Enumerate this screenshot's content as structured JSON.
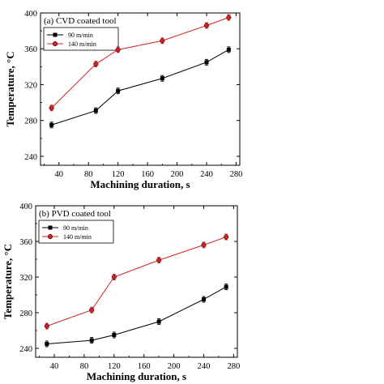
{
  "chart_data": [
    {
      "type": "line",
      "title": "(a)  CVD coated tool",
      "xlabel": "Machining duration, s",
      "ylabel": "Temperature, °C",
      "xlim": [
        15,
        285
      ],
      "ylim": [
        230,
        400
      ],
      "xticks": [
        "40",
        "80",
        "120",
        "160",
        "200",
        "240",
        "280"
      ],
      "yticks": [
        "240",
        "280",
        "320",
        "360",
        "400"
      ],
      "grid": false,
      "legend_position": "top-left",
      "x": [
        30,
        90,
        120,
        180,
        240,
        270
      ],
      "series": [
        {
          "name": "90 m/min",
          "color": "#000000",
          "marker": "square",
          "values": [
            275,
            291,
            313,
            327,
            345,
            359
          ]
        },
        {
          "name": "140 m/min",
          "color": "#d62020",
          "marker": "circle",
          "values": [
            294,
            343,
            359,
            369,
            386,
            395
          ]
        }
      ]
    },
    {
      "type": "line",
      "title": "(b) PVD coated  tool",
      "xlabel": "Machining duration, s",
      "ylabel": "Temperature, °C",
      "xlim": [
        15,
        285
      ],
      "ylim": [
        230,
        400
      ],
      "xticks": [
        "40",
        "80",
        "120",
        "160",
        "200",
        "240",
        "280"
      ],
      "yticks": [
        "240",
        "280",
        "320",
        "360",
        "400"
      ],
      "grid": false,
      "legend_position": "top-left",
      "x": [
        30,
        90,
        120,
        180,
        240,
        270
      ],
      "series": [
        {
          "name": "90 m/min",
          "color": "#000000",
          "marker": "square",
          "values": [
            245,
            249,
            255,
            270,
            295,
            309
          ]
        },
        {
          "name": "140 m/min",
          "color": "#d62020",
          "marker": "circle",
          "values": [
            265,
            283,
            320,
            339,
            356,
            365
          ]
        }
      ]
    }
  ]
}
